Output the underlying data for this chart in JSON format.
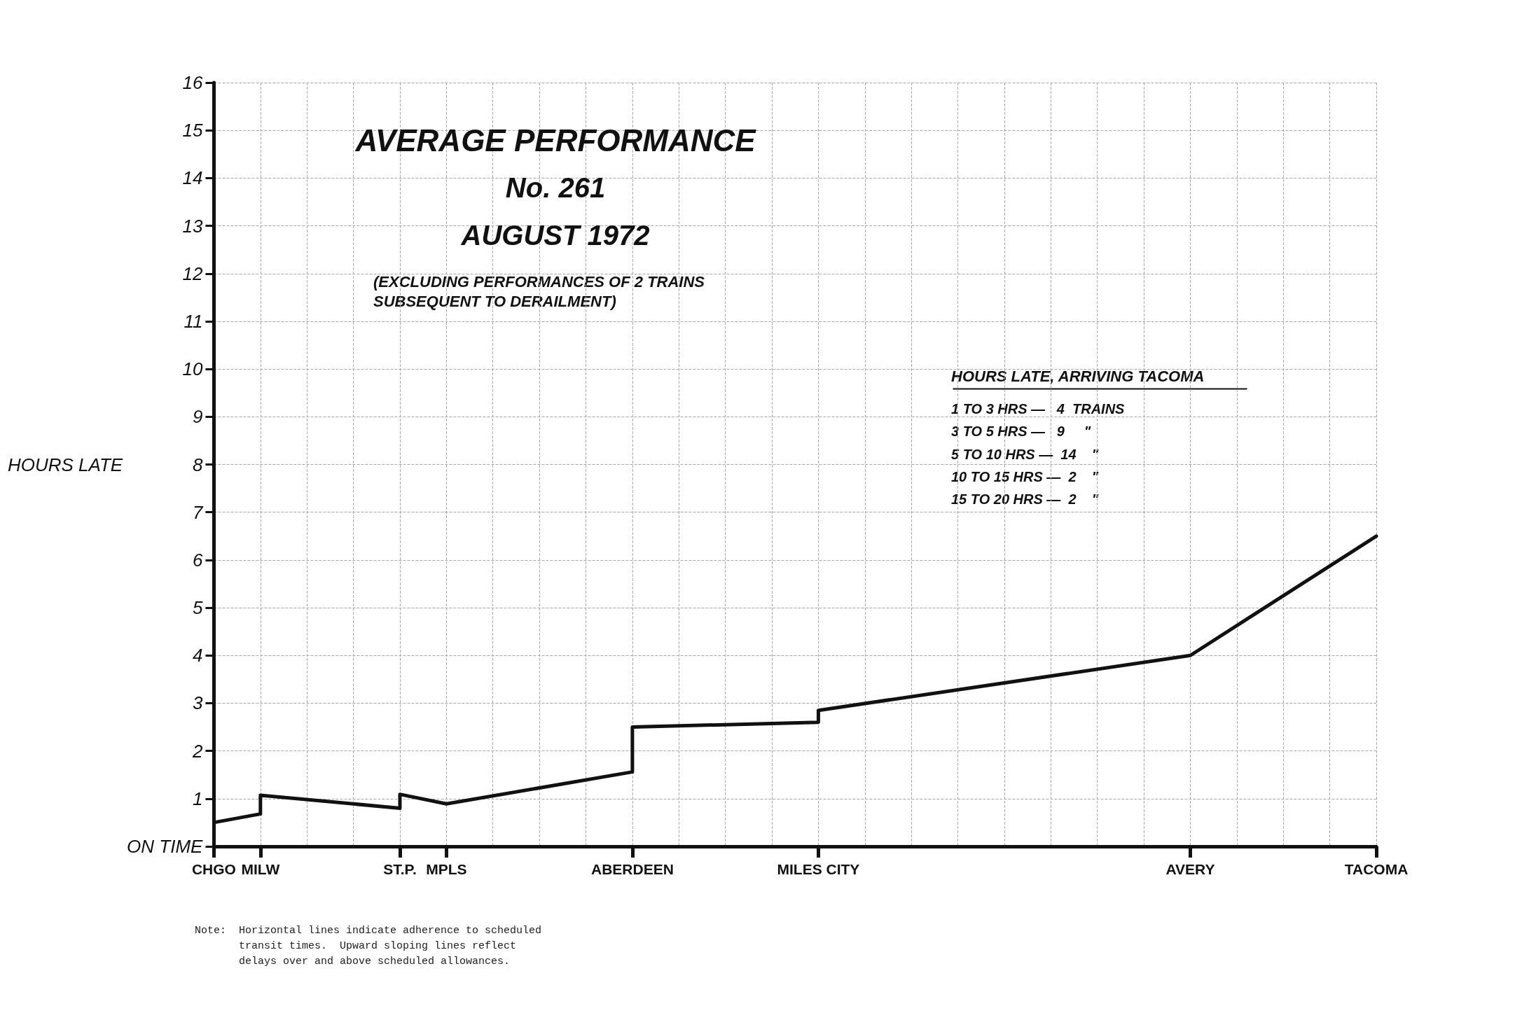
{
  "chart_data": {
    "type": "line",
    "title": "AVERAGE PERFORMANCE",
    "subtitle": "No. 261\nAUGUST 1972",
    "ylabel": "HOURS LATE",
    "categories": [
      "CHGO",
      "MILW",
      null,
      null,
      "ST.P.",
      "MPLS",
      null,
      null,
      null,
      "ABERDEEN",
      null,
      null,
      null,
      "MILES CITY",
      null,
      null,
      null,
      null,
      null,
      null,
      null,
      "AVERY",
      null,
      null,
      null,
      "TACOMA"
    ],
    "series": [
      {
        "color": "#111111",
        "x": [
          "CHGO",
          "MILW",
          "MILW",
          "ST.P.",
          "ST.P.",
          "MPLS",
          "ABERDEEN",
          "ABERDEEN",
          "MILES CITY",
          "MILES CITY",
          "AVERY",
          "TACOMA"
        ],
        "values": [
          0.5,
          0.68,
          1.07,
          0.8,
          1.09,
          0.89,
          1.56,
          2.5,
          2.6,
          2.85,
          4.0,
          6.5
        ]
      }
    ],
    "ylim": [
      0,
      16
    ],
    "yticks": [
      {
        "value": 0,
        "label": "ON TIME"
      },
      1,
      2,
      3,
      4,
      5,
      6,
      7,
      8,
      9,
      10,
      11,
      12,
      13,
      14,
      15,
      16
    ],
    "grid": true,
    "marker": "none",
    "line_style": "solid",
    "annotations": [
      "(EXCLUDING PERFORMANCES OF 2 TRAINS\nSUBSEQUENT TO DERAILMENT)",
      "HOURS LATE, ARRIVING TACOMA",
      "1 TO 3 HRS —   4  TRAINS",
      "3 TO 5 HRS —   9     \"",
      "5 TO 10 HRS —  14    \"",
      "10 TO 15 HRS —  2    \"",
      "15 TO 20 HRS —  2    \"",
      "Note:  Horizontal lines indicate adherence to scheduled\n       transit times.  Upward sloping lines reflect\n       delays over and above scheduled allowances."
    ]
  }
}
